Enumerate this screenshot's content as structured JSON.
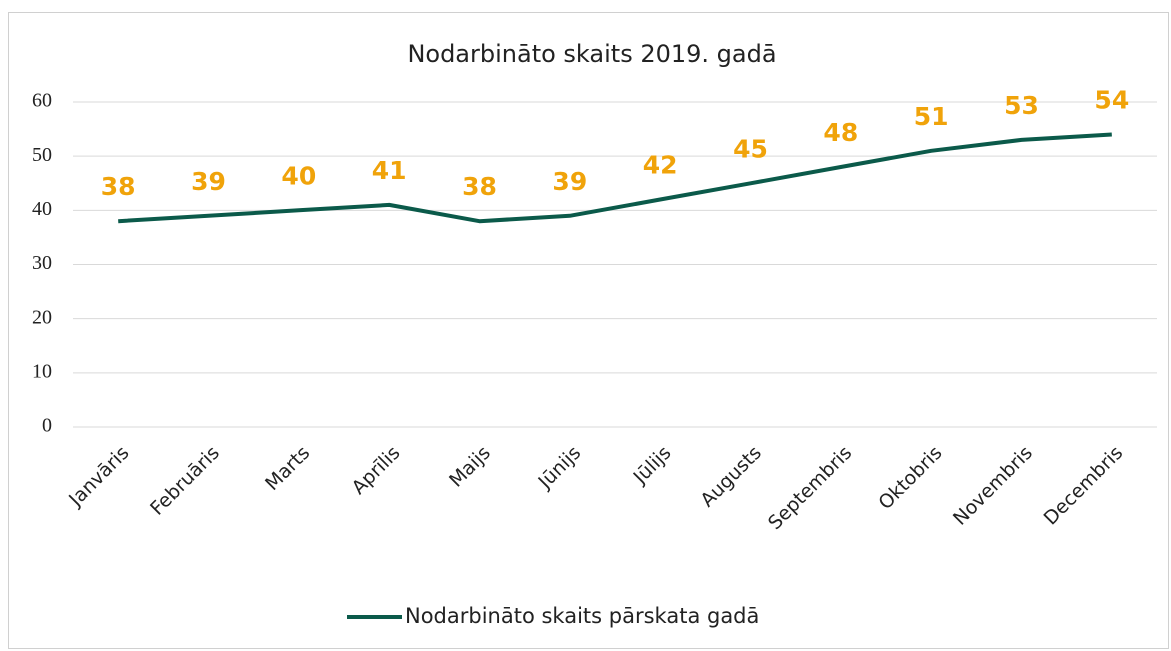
{
  "chart_data": {
    "type": "line",
    "title": "Nodarbināto skaits 2019. gadā",
    "categories": [
      "Janvāris",
      "Februāris",
      "Marts",
      "Aprīlis",
      "Maijs",
      "Jūnijs",
      "Jūlijs",
      "Augusts",
      "Septembris",
      "Oktobris",
      "Novembris",
      "Decembris"
    ],
    "series": [
      {
        "name": "Nodarbināto skaits pārskata gadā",
        "color": "#0b5a4a",
        "values": [
          38,
          39,
          40,
          41,
          38,
          39,
          42,
          45,
          48,
          51,
          53,
          54
        ]
      }
    ],
    "data_label_color": "#f0a30a",
    "ylim": [
      0,
      60
    ],
    "yticks": [
      0,
      10,
      20,
      30,
      40,
      50,
      60
    ],
    "grid": true,
    "legend": "bottom"
  }
}
